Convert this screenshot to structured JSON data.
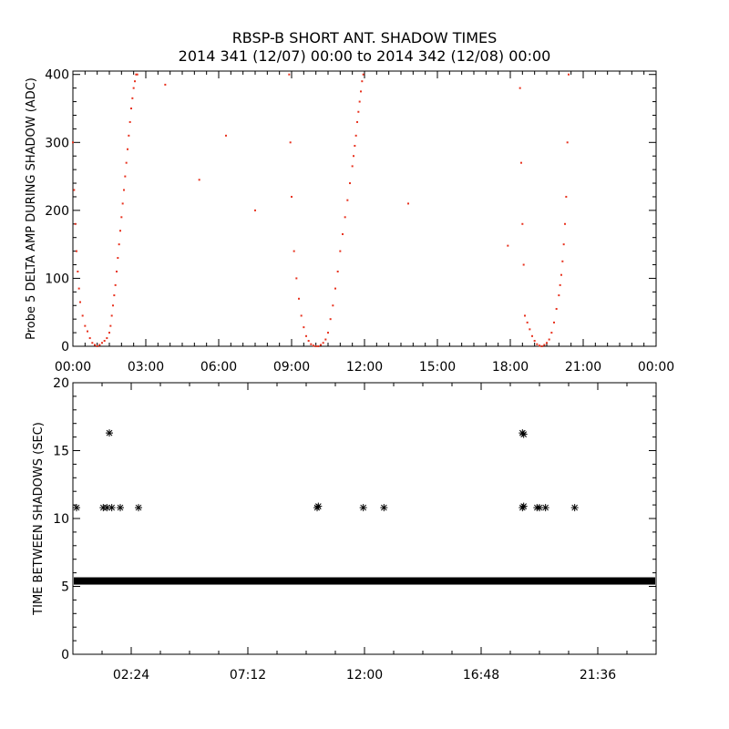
{
  "title_line1": "RBSP-B SHORT ANT. SHADOW TIMES",
  "title_line2": "2014 341 (12/07) 00:00 to 2014 342 (12/08) 00:00",
  "chart_data": [
    {
      "type": "scatter",
      "ylabel": "Probe 5 DELTA AMP DURING SHADOW (ADC)",
      "xlim_hours": [
        0,
        24
      ],
      "ylim": [
        0,
        400
      ],
      "x_ticks": [
        "00:00",
        "03:00",
        "06:00",
        "09:00",
        "12:00",
        "15:00",
        "18:00",
        "21:00",
        "00:00"
      ],
      "y_ticks": [
        "0",
        "100",
        "200",
        "300",
        "400"
      ],
      "marker_color": "#e8321e",
      "series": [
        {
          "x_hours": [
            0.0,
            0.05,
            0.1,
            0.15,
            0.2,
            0.25,
            0.3,
            0.4,
            0.5,
            0.6,
            0.7,
            0.8,
            0.9,
            1.0,
            1.1,
            1.2,
            1.3,
            1.4,
            1.5,
            1.55,
            1.6,
            1.65,
            1.7,
            1.75,
            1.8,
            1.85,
            1.9,
            1.95,
            2.0,
            2.05,
            2.1,
            2.15,
            2.2,
            2.25,
            2.3,
            2.35,
            2.4,
            2.45,
            2.5,
            2.55,
            2.6,
            2.65
          ],
          "y": [
            300,
            230,
            180,
            140,
            110,
            85,
            65,
            45,
            30,
            22,
            12,
            5,
            2,
            0,
            2,
            5,
            8,
            12,
            20,
            30,
            45,
            60,
            75,
            90,
            110,
            130,
            150,
            170,
            190,
            210,
            230,
            250,
            270,
            290,
            310,
            330,
            350,
            365,
            380,
            390,
            400,
            400
          ]
        },
        {
          "x_hours": [
            8.9,
            8.95,
            9.0,
            9.1,
            9.2,
            9.3,
            9.4,
            9.5,
            9.6,
            9.7,
            9.8,
            9.9,
            10.0,
            10.1,
            10.2,
            10.3,
            10.4,
            10.5,
            10.6,
            10.7,
            10.8,
            10.9,
            11.0,
            11.1,
            11.2,
            11.3,
            11.4,
            11.5,
            11.55,
            11.6,
            11.65,
            11.7,
            11.75,
            11.8,
            11.85,
            11.9,
            11.95
          ],
          "y": [
            400,
            300,
            220,
            140,
            100,
            70,
            45,
            28,
            15,
            8,
            3,
            1,
            0,
            0,
            2,
            5,
            10,
            20,
            40,
            60,
            85,
            110,
            140,
            165,
            190,
            215,
            240,
            265,
            280,
            295,
            310,
            330,
            345,
            360,
            375,
            390,
            400
          ]
        },
        {
          "x_hours": [
            18.4,
            18.45,
            18.5,
            18.55,
            18.6,
            18.7,
            18.8,
            18.9,
            19.0,
            19.1,
            19.2,
            19.3,
            19.4,
            19.5,
            19.6,
            19.7,
            19.8,
            19.9,
            20.0,
            20.05,
            20.1,
            20.15,
            20.2,
            20.25,
            20.3,
            20.35,
            20.4
          ],
          "y": [
            380,
            270,
            180,
            120,
            45,
            35,
            25,
            15,
            8,
            3,
            1,
            0,
            2,
            5,
            10,
            20,
            35,
            55,
            75,
            90,
            105,
            125,
            150,
            180,
            220,
            300,
            400
          ]
        },
        {
          "x_hours": [
            3.8,
            5.2,
            6.3,
            7.5,
            13.8,
            17.9
          ],
          "y": [
            385,
            245,
            310,
            200,
            210,
            148
          ]
        }
      ]
    },
    {
      "type": "scatter",
      "ylabel": "TIME BETWEEN SHADOWS (SEC)",
      "xlim_hours": [
        0,
        24
      ],
      "ylim": [
        0,
        20
      ],
      "x_ticks": [
        "02:24",
        "07:12",
        "12:00",
        "16:48",
        "21:36"
      ],
      "y_ticks": [
        "0",
        "5",
        "10",
        "15",
        "20"
      ],
      "marker_color": "#000000",
      "baseline": {
        "value": 5.4,
        "x_start_hours": 0.0,
        "x_end_hours": 24.0
      },
      "points": [
        {
          "x": 0.15,
          "y": 10.8
        },
        {
          "x": 1.25,
          "y": 10.8
        },
        {
          "x": 1.4,
          "y": 10.8
        },
        {
          "x": 1.5,
          "y": 16.3
        },
        {
          "x": 1.6,
          "y": 10.8
        },
        {
          "x": 1.95,
          "y": 10.8
        },
        {
          "x": 2.7,
          "y": 10.8
        },
        {
          "x": 10.05,
          "y": 10.8
        },
        {
          "x": 10.1,
          "y": 10.9
        },
        {
          "x": 11.95,
          "y": 10.8
        },
        {
          "x": 12.8,
          "y": 10.8
        },
        {
          "x": 18.5,
          "y": 16.3
        },
        {
          "x": 18.55,
          "y": 16.2
        },
        {
          "x": 18.5,
          "y": 10.8
        },
        {
          "x": 18.55,
          "y": 10.9
        },
        {
          "x": 19.1,
          "y": 10.8
        },
        {
          "x": 19.2,
          "y": 10.8
        },
        {
          "x": 19.45,
          "y": 10.8
        },
        {
          "x": 20.65,
          "y": 10.8
        }
      ]
    }
  ]
}
